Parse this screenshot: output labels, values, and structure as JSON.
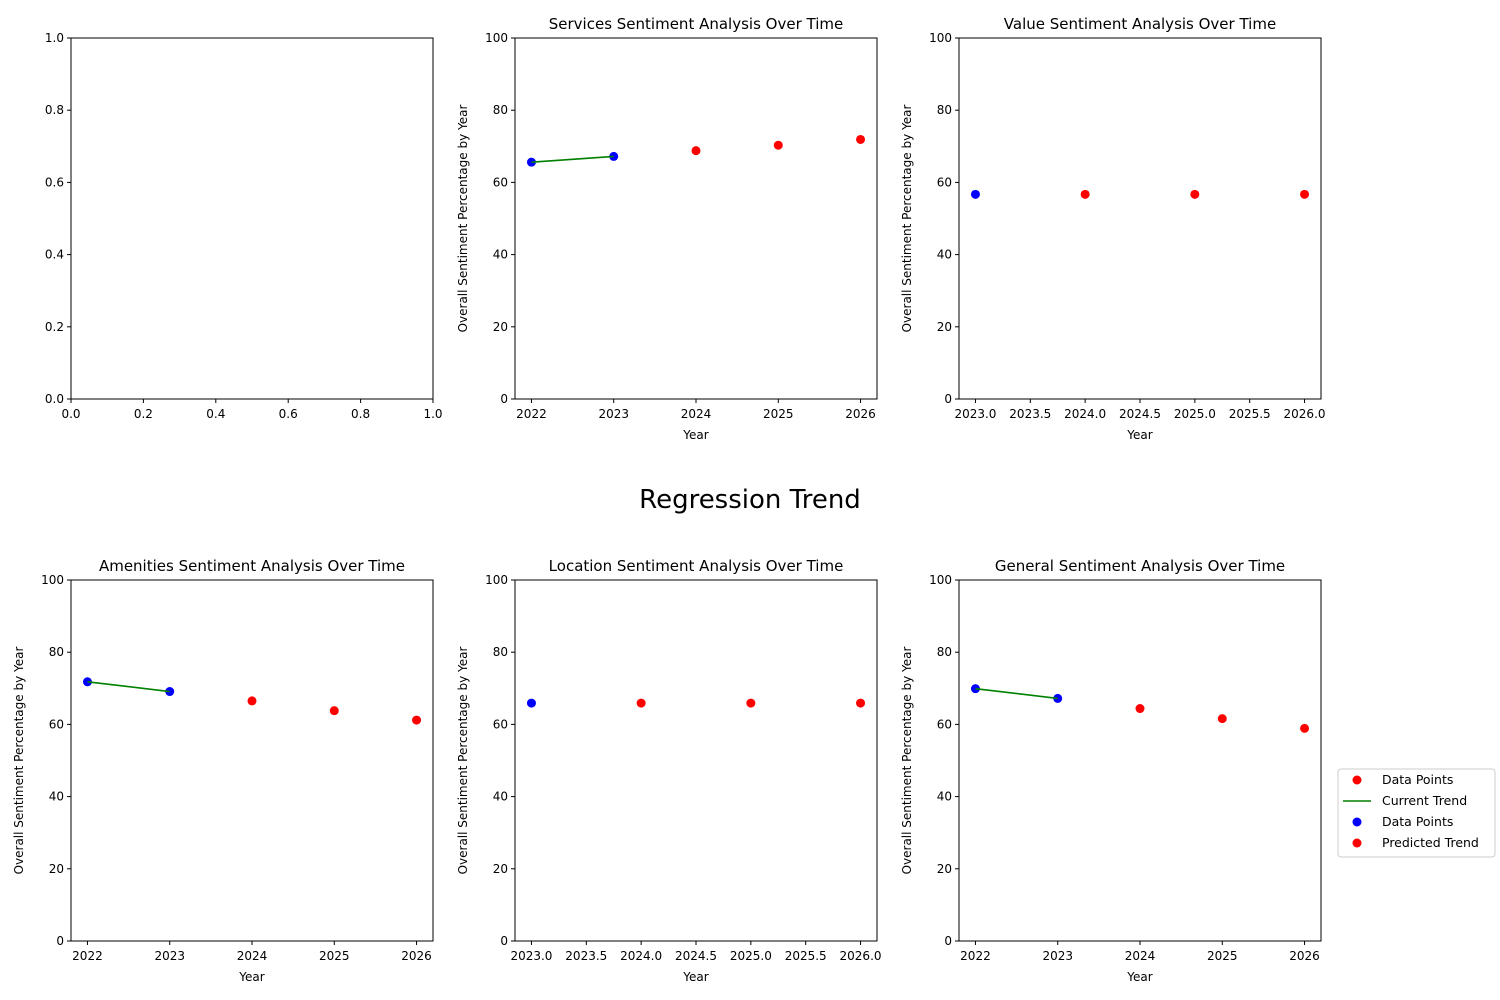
{
  "figure": {
    "suptitle": "Regression Trend"
  },
  "legend": {
    "placement": "right-center",
    "entries": [
      {
        "label": "Data Points",
        "kind": "marker",
        "color": "#ff0000"
      },
      {
        "label": "Current Trend",
        "kind": "line",
        "color": "#008000"
      },
      {
        "label": "Data Points",
        "kind": "marker",
        "color": "#0000ff"
      },
      {
        "label": "Predicted Trend",
        "kind": "marker",
        "color": "#ff0000"
      }
    ]
  },
  "colors": {
    "observed": "#0000ff",
    "predicted": "#ff0000",
    "trend": "#008000"
  },
  "chart_data": [
    {
      "type": "empty",
      "title": "",
      "xlabel": "",
      "ylabel": "",
      "xlim": [
        0,
        1
      ],
      "ylim": [
        0,
        1
      ],
      "xticks": [
        "0.0",
        "0.2",
        "0.4",
        "0.6",
        "0.8",
        "1.0"
      ],
      "xtick_values": [
        0,
        0.2,
        0.4,
        0.6,
        0.8,
        1.0
      ],
      "yticks": [
        "0.0",
        "0.2",
        "0.4",
        "0.6",
        "0.8",
        "1.0"
      ],
      "ytick_values": [
        0,
        0.2,
        0.4,
        0.6,
        0.8,
        1.0
      ],
      "observed": {
        "x": [],
        "y": []
      },
      "trend": {
        "x": [],
        "y": []
      },
      "predicted": {
        "x": [],
        "y": []
      }
    },
    {
      "type": "scatter",
      "title": "Services Sentiment Analysis Over Time",
      "xlabel": "Year",
      "ylabel": "Overall Sentiment Percentage by Year",
      "xlim": [
        2021.8,
        2026.2
      ],
      "ylim": [
        0,
        100
      ],
      "xticks": [
        "2022",
        "2023",
        "2024",
        "2025",
        "2026"
      ],
      "xtick_values": [
        2022,
        2023,
        2024,
        2025,
        2026
      ],
      "yticks": [
        "0",
        "20",
        "40",
        "60",
        "80",
        "100"
      ],
      "ytick_values": [
        0,
        20,
        40,
        60,
        80,
        100
      ],
      "observed": {
        "x": [
          2022,
          2023
        ],
        "y": [
          65.6,
          67.2
        ]
      },
      "trend": {
        "x": [
          2022,
          2023
        ],
        "y": [
          65.6,
          67.2
        ]
      },
      "predicted": {
        "x": [
          2024,
          2025,
          2026
        ],
        "y": [
          68.8,
          70.3,
          71.9
        ]
      }
    },
    {
      "type": "scatter",
      "title": "Value Sentiment Analysis Over Time",
      "xlabel": "Year",
      "ylabel": "Overall Sentiment Percentage by Year",
      "xlim": [
        2022.85,
        2026.15
      ],
      "ylim": [
        0,
        100
      ],
      "xticks": [
        "2023.0",
        "2023.5",
        "2024.0",
        "2024.5",
        "2025.0",
        "2025.5",
        "2026.0"
      ],
      "xtick_values": [
        2023.0,
        2023.5,
        2024.0,
        2024.5,
        2025.0,
        2025.5,
        2026.0
      ],
      "yticks": [
        "0",
        "20",
        "40",
        "60",
        "80",
        "100"
      ],
      "ytick_values": [
        0,
        20,
        40,
        60,
        80,
        100
      ],
      "observed": {
        "x": [
          2023
        ],
        "y": [
          56.7
        ]
      },
      "trend": {
        "x": [],
        "y": []
      },
      "predicted": {
        "x": [
          2024,
          2025,
          2026
        ],
        "y": [
          56.7,
          56.7,
          56.7
        ]
      }
    },
    {
      "type": "scatter",
      "title": "Amenities Sentiment Analysis Over Time",
      "xlabel": "Year",
      "ylabel": "Overall Sentiment Percentage by Year",
      "xlim": [
        2021.8,
        2026.2
      ],
      "ylim": [
        0,
        100
      ],
      "xticks": [
        "2022",
        "2023",
        "2024",
        "2025",
        "2026"
      ],
      "xtick_values": [
        2022,
        2023,
        2024,
        2025,
        2026
      ],
      "yticks": [
        "0",
        "20",
        "40",
        "60",
        "80",
        "100"
      ],
      "ytick_values": [
        0,
        20,
        40,
        60,
        80,
        100
      ],
      "observed": {
        "x": [
          2022,
          2023
        ],
        "y": [
          71.8,
          69.1
        ]
      },
      "trend": {
        "x": [
          2022,
          2023
        ],
        "y": [
          71.8,
          69.1
        ]
      },
      "predicted": {
        "x": [
          2024,
          2025,
          2026
        ],
        "y": [
          66.5,
          63.8,
          61.2
        ]
      }
    },
    {
      "type": "scatter",
      "title": "Location Sentiment Analysis Over Time",
      "xlabel": "Year",
      "ylabel": "Overall Sentiment Percentage by Year",
      "xlim": [
        2022.85,
        2026.15
      ],
      "ylim": [
        0,
        100
      ],
      "xticks": [
        "2023.0",
        "2023.5",
        "2024.0",
        "2024.5",
        "2025.0",
        "2025.5",
        "2026.0"
      ],
      "xtick_values": [
        2023.0,
        2023.5,
        2024.0,
        2024.5,
        2025.0,
        2025.5,
        2026.0
      ],
      "yticks": [
        "0",
        "20",
        "40",
        "60",
        "80",
        "100"
      ],
      "ytick_values": [
        0,
        20,
        40,
        60,
        80,
        100
      ],
      "observed": {
        "x": [
          2023
        ],
        "y": [
          65.9
        ]
      },
      "trend": {
        "x": [],
        "y": []
      },
      "predicted": {
        "x": [
          2024,
          2025,
          2026
        ],
        "y": [
          65.9,
          65.9,
          65.9
        ]
      }
    },
    {
      "type": "scatter",
      "title": "General Sentiment Analysis Over Time",
      "xlabel": "Year",
      "ylabel": "Overall Sentiment Percentage by Year",
      "xlim": [
        2021.8,
        2026.2
      ],
      "ylim": [
        0,
        100
      ],
      "xticks": [
        "2022",
        "2023",
        "2024",
        "2025",
        "2026"
      ],
      "xtick_values": [
        2022,
        2023,
        2024,
        2025,
        2026
      ],
      "yticks": [
        "0",
        "20",
        "40",
        "60",
        "80",
        "100"
      ],
      "ytick_values": [
        0,
        20,
        40,
        60,
        80,
        100
      ],
      "observed": {
        "x": [
          2022,
          2023
        ],
        "y": [
          69.9,
          67.2
        ]
      },
      "trend": {
        "x": [
          2022,
          2023
        ],
        "y": [
          69.9,
          67.2
        ]
      },
      "predicted": {
        "x": [
          2024,
          2025,
          2026
        ],
        "y": [
          64.4,
          61.6,
          58.9
        ]
      }
    }
  ]
}
